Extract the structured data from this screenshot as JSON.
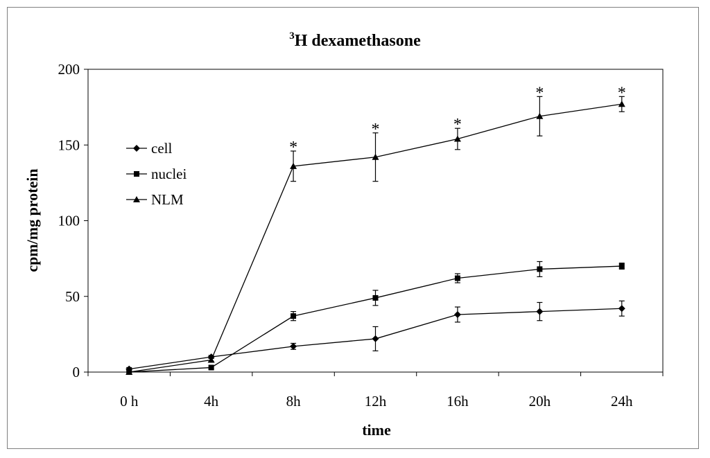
{
  "chart_data": {
    "type": "line",
    "title": {
      "superscript": "3",
      "text": "H dexamethasone"
    },
    "xlabel": "time",
    "ylabel": "cpm/mg protein",
    "categories": [
      "0 h",
      "4h",
      "8h",
      "12h",
      "16h",
      "20h",
      "24h"
    ],
    "ylim": [
      0,
      200
    ],
    "yticks": [
      "0",
      "50",
      "100",
      "150",
      "200"
    ],
    "grid": false,
    "legend_position": "top-left",
    "series": [
      {
        "name": "cell",
        "marker": "diamond",
        "values": [
          2,
          10,
          17,
          22,
          38,
          40,
          42
        ],
        "errors": [
          1,
          1,
          2,
          8,
          5,
          6,
          5
        ],
        "significant": [
          false,
          false,
          false,
          false,
          false,
          false,
          false
        ]
      },
      {
        "name": "nuclei",
        "marker": "square",
        "values": [
          0,
          3,
          37,
          49,
          62,
          68,
          70
        ],
        "errors": [
          0,
          1,
          3,
          5,
          3,
          5,
          2
        ],
        "significant": [
          false,
          false,
          false,
          false,
          false,
          false,
          false
        ]
      },
      {
        "name": "NLM",
        "marker": "triangle",
        "values": [
          0,
          8,
          136,
          142,
          154,
          169,
          177
        ],
        "errors": [
          0,
          1,
          10,
          16,
          7,
          13,
          5
        ],
        "significant": [
          false,
          false,
          true,
          true,
          true,
          true,
          true
        ]
      }
    ],
    "significance_marker": "*",
    "color": "#000000"
  }
}
